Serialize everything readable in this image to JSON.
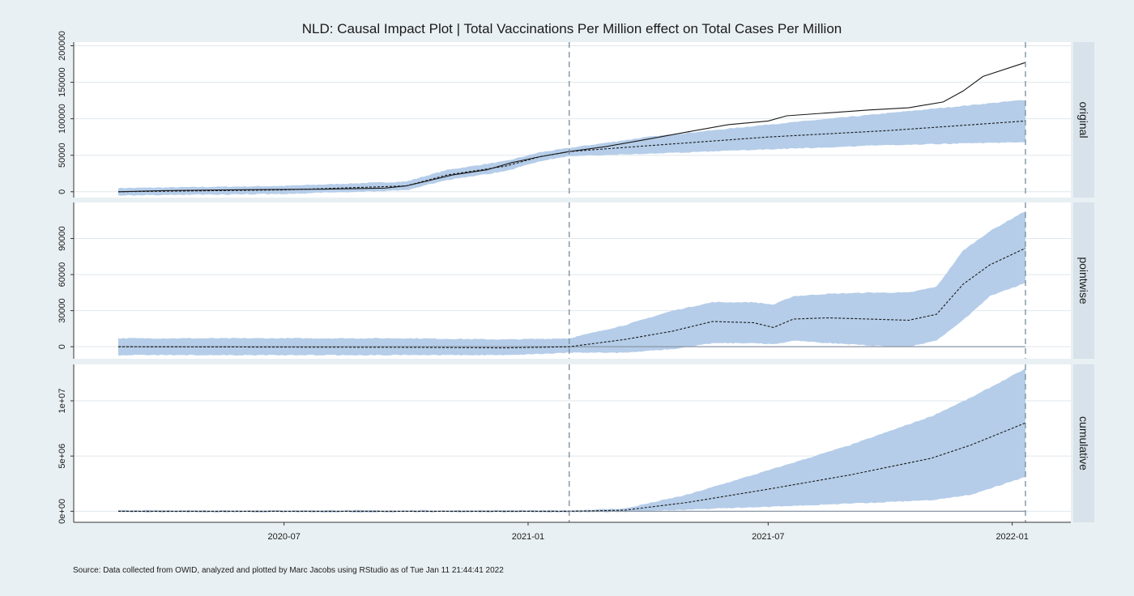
{
  "chart_data": {
    "type": "area",
    "title": "NLD: Causal Impact Plot | Total Vaccinations Per Million effect on Total Cases Per Million",
    "caption": "Source: Data collected from OWID, analyzed and plotted by Marc Jacobs using RStudio as of Tue Jan 11 21:44:41 2022",
    "intervention_date": "2021-02-01",
    "end_date": "2022-01-11",
    "x_range": [
      "2020-02-27",
      "2022-01-11"
    ],
    "x_ticks": [
      {
        "date": "2020-07-01",
        "label": "2020-07"
      },
      {
        "date": "2021-01-01",
        "label": "2021-01"
      },
      {
        "date": "2021-07-01",
        "label": "2021-07"
      },
      {
        "date": "2022-01-01",
        "label": "2022-01"
      }
    ],
    "colors": {
      "band": "#b5cde9",
      "line": "#1a1a1a",
      "vline": "#7f93a3",
      "strip": "#d7e2ea",
      "panel": "#ffffff",
      "background": "#e9f0f3",
      "grid": "#dfe7ec",
      "zero_line": "#8a96a6"
    },
    "panels": [
      {
        "strip": "original",
        "ylim": [
          -8000,
          205000
        ],
        "y_ticks": [
          {
            "value": 0,
            "label": "0"
          },
          {
            "value": 50000,
            "label": "50000"
          },
          {
            "value": 100000,
            "label": "100000"
          },
          {
            "value": 150000,
            "label": "150000"
          },
          {
            "value": 200000,
            "label": "200000"
          }
        ],
        "zero_line": false,
        "observed": [
          [
            "2020-02-27",
            0
          ],
          [
            "2020-04-01",
            1500
          ],
          [
            "2020-06-01",
            2800
          ],
          [
            "2020-08-01",
            3500
          ],
          [
            "2020-09-15",
            5000
          ],
          [
            "2020-10-01",
            8000
          ],
          [
            "2020-10-20",
            16000
          ],
          [
            "2020-11-05",
            23000
          ],
          [
            "2020-12-01",
            30000
          ],
          [
            "2020-12-20",
            40000
          ],
          [
            "2021-01-10",
            48000
          ],
          [
            "2021-02-01",
            55000
          ],
          [
            "2021-03-01",
            62000
          ],
          [
            "2021-04-01",
            72000
          ],
          [
            "2021-05-01",
            82000
          ],
          [
            "2021-06-01",
            92000
          ],
          [
            "2021-07-01",
            97000
          ],
          [
            "2021-07-15",
            104000
          ],
          [
            "2021-08-15",
            108000
          ],
          [
            "2021-09-15",
            112000
          ],
          [
            "2021-10-15",
            115000
          ],
          [
            "2021-11-10",
            123000
          ],
          [
            "2021-11-25",
            138000
          ],
          [
            "2021-12-10",
            158000
          ],
          [
            "2022-01-11",
            177000
          ]
        ],
        "predicted": [
          [
            "2020-02-27",
            0
          ],
          [
            "2020-07-01",
            2500
          ],
          [
            "2020-10-01",
            8000
          ],
          [
            "2020-11-01",
            23000
          ],
          [
            "2020-12-15",
            35000
          ],
          [
            "2021-01-10",
            48000
          ],
          [
            "2021-02-01",
            55000
          ],
          [
            "2021-04-01",
            63000
          ],
          [
            "2021-07-01",
            75000
          ],
          [
            "2021-10-01",
            84000
          ],
          [
            "2022-01-11",
            97000
          ]
        ],
        "lower": [
          [
            "2020-02-27",
            -5000
          ],
          [
            "2020-07-01",
            -3000
          ],
          [
            "2020-10-01",
            2000
          ],
          [
            "2020-11-01",
            16000
          ],
          [
            "2020-12-15",
            28000
          ],
          [
            "2021-01-10",
            42000
          ],
          [
            "2021-02-01",
            49000
          ],
          [
            "2021-04-01",
            52000
          ],
          [
            "2021-07-01",
            58000
          ],
          [
            "2021-10-01",
            64000
          ],
          [
            "2022-01-11",
            68000
          ]
        ],
        "upper": [
          [
            "2020-02-27",
            5000
          ],
          [
            "2020-07-01",
            8000
          ],
          [
            "2020-10-01",
            14000
          ],
          [
            "2020-11-01",
            30000
          ],
          [
            "2020-12-15",
            42000
          ],
          [
            "2021-01-10",
            54000
          ],
          [
            "2021-02-01",
            60000
          ],
          [
            "2021-04-01",
            75000
          ],
          [
            "2021-07-01",
            92000
          ],
          [
            "2021-10-01",
            108000
          ],
          [
            "2022-01-11",
            126000
          ]
        ]
      },
      {
        "strip": "pointwise",
        "ylim": [
          -10000,
          120000
        ],
        "y_ticks": [
          {
            "value": 0,
            "label": "0"
          },
          {
            "value": 30000,
            "label": "30000"
          },
          {
            "value": 60000,
            "label": "60000"
          },
          {
            "value": 90000,
            "label": "90000"
          }
        ],
        "zero_line": true,
        "effect": [
          [
            "2020-02-27",
            0
          ],
          [
            "2020-10-01",
            -500
          ],
          [
            "2020-12-15",
            -1000
          ],
          [
            "2021-02-01",
            0
          ],
          [
            "2021-03-15",
            6000
          ],
          [
            "2021-04-20",
            13000
          ],
          [
            "2021-05-20",
            21000
          ],
          [
            "2021-06-20",
            20000
          ],
          [
            "2021-07-05",
            16000
          ],
          [
            "2021-07-20",
            23000
          ],
          [
            "2021-08-15",
            24000
          ],
          [
            "2021-09-15",
            23000
          ],
          [
            "2021-10-15",
            22000
          ],
          [
            "2021-11-05",
            27000
          ],
          [
            "2021-11-25",
            52000
          ],
          [
            "2021-12-15",
            68000
          ],
          [
            "2022-01-11",
            82000
          ]
        ],
        "lower": [
          [
            "2020-02-27",
            -7000
          ],
          [
            "2020-10-01",
            -7000
          ],
          [
            "2020-12-15",
            -7000
          ],
          [
            "2021-02-01",
            -5000
          ],
          [
            "2021-03-15",
            -5000
          ],
          [
            "2021-04-20",
            -2000
          ],
          [
            "2021-05-20",
            3000
          ],
          [
            "2021-06-20",
            3000
          ],
          [
            "2021-07-05",
            2000
          ],
          [
            "2021-07-20",
            5000
          ],
          [
            "2021-08-15",
            3000
          ],
          [
            "2021-09-15",
            1000
          ],
          [
            "2021-10-15",
            0
          ],
          [
            "2021-11-05",
            5000
          ],
          [
            "2021-11-25",
            22000
          ],
          [
            "2021-12-15",
            42000
          ],
          [
            "2022-01-11",
            53000
          ]
        ],
        "upper": [
          [
            "2020-02-27",
            7000
          ],
          [
            "2020-10-01",
            7000
          ],
          [
            "2020-12-15",
            6000
          ],
          [
            "2021-02-01",
            7000
          ],
          [
            "2021-03-15",
            18000
          ],
          [
            "2021-04-20",
            30000
          ],
          [
            "2021-05-20",
            37000
          ],
          [
            "2021-06-20",
            37000
          ],
          [
            "2021-07-05",
            35000
          ],
          [
            "2021-07-20",
            42000
          ],
          [
            "2021-08-15",
            44000
          ],
          [
            "2021-09-15",
            45000
          ],
          [
            "2021-10-15",
            45000
          ],
          [
            "2021-11-05",
            50000
          ],
          [
            "2021-11-25",
            80000
          ],
          [
            "2021-12-15",
            96000
          ],
          [
            "2022-01-11",
            113000
          ]
        ]
      },
      {
        "strip": "cumulative",
        "ylim": [
          -1000000,
          13300000
        ],
        "y_ticks": [
          {
            "value": 0,
            "label": "0e+00"
          },
          {
            "value": 5000000,
            "label": "5e+06"
          },
          {
            "value": 10000000,
            "label": "1e+07"
          }
        ],
        "zero_line": true,
        "effect": [
          [
            "2020-02-27",
            0
          ],
          [
            "2021-02-01",
            0
          ],
          [
            "2021-03-15",
            100000
          ],
          [
            "2021-05-01",
            800000
          ],
          [
            "2021-07-01",
            2000000
          ],
          [
            "2021-09-01",
            3300000
          ],
          [
            "2021-11-01",
            4800000
          ],
          [
            "2021-12-01",
            6000000
          ],
          [
            "2022-01-11",
            8000000
          ]
        ],
        "lower": [
          [
            "2020-02-27",
            -80000
          ],
          [
            "2021-02-01",
            -80000
          ],
          [
            "2021-03-15",
            -50000
          ],
          [
            "2021-05-01",
            150000
          ],
          [
            "2021-07-01",
            400000
          ],
          [
            "2021-09-01",
            700000
          ],
          [
            "2021-11-01",
            1000000
          ],
          [
            "2021-12-01",
            1500000
          ],
          [
            "2022-01-11",
            3100000
          ]
        ],
        "upper": [
          [
            "2020-02-27",
            80000
          ],
          [
            "2021-02-01",
            80000
          ],
          [
            "2021-03-15",
            250000
          ],
          [
            "2021-05-01",
            1500000
          ],
          [
            "2021-07-01",
            3700000
          ],
          [
            "2021-09-01",
            6000000
          ],
          [
            "2021-11-01",
            8600000
          ],
          [
            "2021-12-01",
            10300000
          ],
          [
            "2022-01-11",
            12900000
          ]
        ]
      }
    ]
  }
}
